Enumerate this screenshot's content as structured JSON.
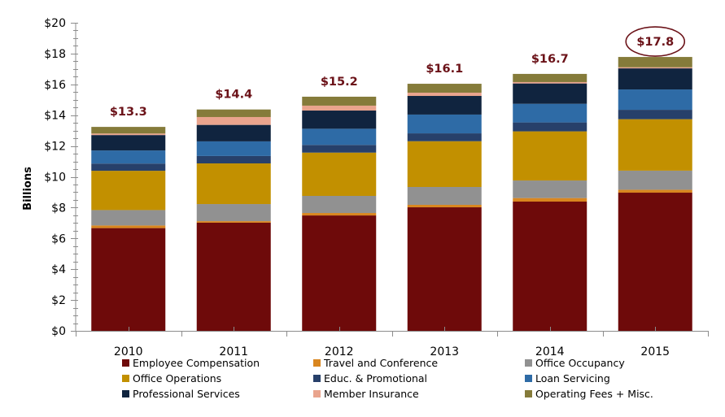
{
  "chart_data": {
    "type": "bar",
    "stacked": true,
    "title": "",
    "xlabel": "",
    "ylabel": "Billions",
    "ylim": [
      0,
      20
    ],
    "y_major_step": 2,
    "y_minor_step": 0.5,
    "y_tick_labels": [
      "$0",
      "$2",
      "$4",
      "$6",
      "$8",
      "$10",
      "$12",
      "$14",
      "$16",
      "$18",
      "$20"
    ],
    "grid": false,
    "legend_position": "bottom",
    "categories": [
      "2010",
      "2011",
      "2012",
      "2013",
      "2014",
      "2015"
    ],
    "series": [
      {
        "name": "Employee Compensation",
        "color": "#6E0A0A",
        "values": [
          6.67,
          7.02,
          7.49,
          8.02,
          8.39,
          8.97
        ]
      },
      {
        "name": "Travel and Conference",
        "color": "#D9861F",
        "values": [
          0.17,
          0.1,
          0.16,
          0.16,
          0.23,
          0.19
        ]
      },
      {
        "name": "Office Occupancy",
        "color": "#919191",
        "values": [
          1.0,
          1.11,
          1.11,
          1.16,
          1.14,
          1.24
        ]
      },
      {
        "name": "Office Operations",
        "color": "#C29000",
        "values": [
          2.55,
          2.64,
          2.81,
          2.97,
          3.19,
          3.34
        ]
      },
      {
        "name": "Educ. & Promotional",
        "color": "#27406A",
        "values": [
          0.47,
          0.48,
          0.5,
          0.51,
          0.58,
          0.61
        ]
      },
      {
        "name": "Loan Servicing",
        "color": "#2E6BA6",
        "values": [
          0.85,
          0.95,
          1.05,
          1.22,
          1.21,
          1.32
        ]
      },
      {
        "name": "Professional Services",
        "color": "#10243F",
        "values": [
          1.0,
          1.07,
          1.18,
          1.21,
          1.32,
          1.37
        ]
      },
      {
        "name": "Member Insurance",
        "color": "#E9A48D",
        "values": [
          0.1,
          0.51,
          0.32,
          0.21,
          0.09,
          0.07
        ]
      },
      {
        "name": "Operating Fees + Misc.",
        "color": "#857B3A",
        "values": [
          0.43,
          0.49,
          0.58,
          0.58,
          0.53,
          0.67
        ]
      }
    ],
    "totals": [
      13.3,
      14.4,
      15.2,
      16.1,
      16.7,
      17.8
    ],
    "total_labels": [
      "$13.3",
      "$14.4",
      "$15.2",
      "$16.1",
      "$16.7",
      "$17.8"
    ],
    "annotations": [
      {
        "type": "ellipse-highlight",
        "category": "2015",
        "text": "$17.8",
        "color": "#6B1218"
      }
    ],
    "legend_order": [
      "Employee Compensation",
      "Travel and Conference",
      "Office Occupancy",
      "Office Operations",
      "Educ. & Promotional",
      "Loan Servicing",
      "Professional Services",
      "Member Insurance",
      "Operating Fees + Misc."
    ]
  }
}
